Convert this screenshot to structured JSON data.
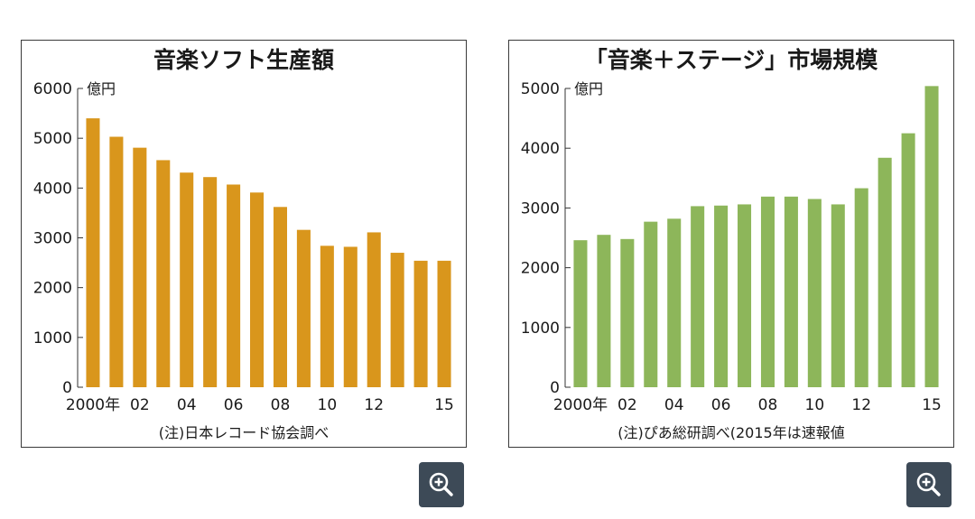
{
  "colors": {
    "left_bar": "#D9961C",
    "right_bar": "#8DB65A",
    "zoom_bg": "#3D4A57"
  },
  "chart_data": [
    {
      "type": "bar",
      "title": "音楽ソフト生産額",
      "unit": "億円",
      "note": "(注)日本レコード協会調べ",
      "ylim": [
        0,
        6000
      ],
      "yticks": [
        "0",
        "1000",
        "2000",
        "3000",
        "4000",
        "5000",
        "6000"
      ],
      "categories": [
        "2000",
        "2001",
        "2002",
        "2003",
        "2004",
        "2005",
        "2006",
        "2007",
        "2008",
        "2009",
        "2010",
        "2011",
        "2012",
        "2013",
        "2014",
        "2015"
      ],
      "x_tick_labels": [
        "2000年",
        "",
        "02",
        "",
        "04",
        "",
        "06",
        "",
        "08",
        "",
        "10",
        "",
        "12",
        "",
        "",
        "15"
      ],
      "values": [
        5400,
        5030,
        4810,
        4560,
        4310,
        4220,
        4070,
        3910,
        3620,
        3160,
        2840,
        2820,
        3110,
        2700,
        2540,
        2540
      ]
    },
    {
      "type": "bar",
      "title": "「音楽＋ステージ」市場規模",
      "unit": "億円",
      "note": "(注)ぴあ総研調べ(2015年は速報値",
      "ylim": [
        0,
        5000
      ],
      "yticks": [
        "0",
        "1000",
        "2000",
        "3000",
        "4000",
        "5000"
      ],
      "categories": [
        "2000",
        "2001",
        "2002",
        "2003",
        "2004",
        "2005",
        "2006",
        "2007",
        "2008",
        "2009",
        "2010",
        "2011",
        "2012",
        "2013",
        "2014",
        "2015"
      ],
      "x_tick_labels": [
        "2000年",
        "",
        "02",
        "",
        "04",
        "",
        "06",
        "",
        "08",
        "",
        "10",
        "",
        "12",
        "",
        "",
        "15"
      ],
      "values": [
        2460,
        2550,
        2480,
        2770,
        2820,
        3030,
        3040,
        3060,
        3190,
        3190,
        3150,
        3060,
        3330,
        3840,
        4250,
        5040
      ]
    }
  ]
}
